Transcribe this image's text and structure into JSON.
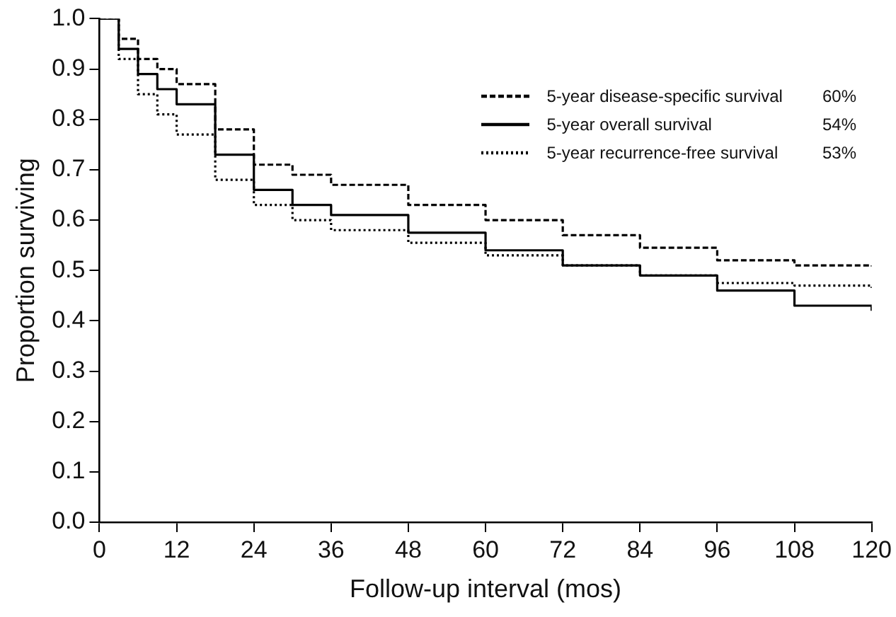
{
  "chart_data": {
    "type": "step",
    "xlabel": "Follow-up interval (mos)",
    "ylabel": "Proportion surviving",
    "x": [
      0,
      3,
      6,
      9,
      12,
      18,
      24,
      30,
      36,
      48,
      60,
      72,
      84,
      96,
      108,
      120
    ],
    "series": [
      {
        "name": "5-year disease-specific survival",
        "color": "#000000",
        "line_style": "dashed",
        "values": [
          1.0,
          0.96,
          0.92,
          0.9,
          0.87,
          0.78,
          0.71,
          0.69,
          0.67,
          0.63,
          0.6,
          0.57,
          0.545,
          0.52,
          0.51,
          0.508
        ]
      },
      {
        "name": "5-year overall survival",
        "color": "#000000",
        "line_style": "solid",
        "values": [
          1.0,
          0.94,
          0.89,
          0.86,
          0.83,
          0.73,
          0.66,
          0.63,
          0.61,
          0.575,
          0.54,
          0.51,
          0.49,
          0.46,
          0.43,
          0.42
        ]
      },
      {
        "name": "5-year recurrence-free survival",
        "color": "#000000",
        "line_style": "dotted",
        "values": [
          1.0,
          0.92,
          0.85,
          0.81,
          0.77,
          0.68,
          0.63,
          0.6,
          0.58,
          0.555,
          0.53,
          0.51,
          0.49,
          0.475,
          0.47,
          0.465
        ]
      }
    ],
    "annotations": [
      "60%",
      "54%",
      "53%"
    ],
    "xlim": [
      0,
      120
    ],
    "xticks": [
      0,
      12,
      24,
      36,
      48,
      60,
      72,
      84,
      96,
      108,
      120
    ],
    "ylim": [
      0,
      1
    ],
    "yticks": [
      {
        "value": 0,
        "label": "0.0"
      },
      0.1,
      0.2,
      0.3,
      0.4,
      0.5,
      0.6,
      0.7,
      0.8,
      0.9,
      {
        "value": 1,
        "label": "1.0"
      }
    ],
    "grid": false,
    "legend": "top right",
    "marker": "none"
  }
}
